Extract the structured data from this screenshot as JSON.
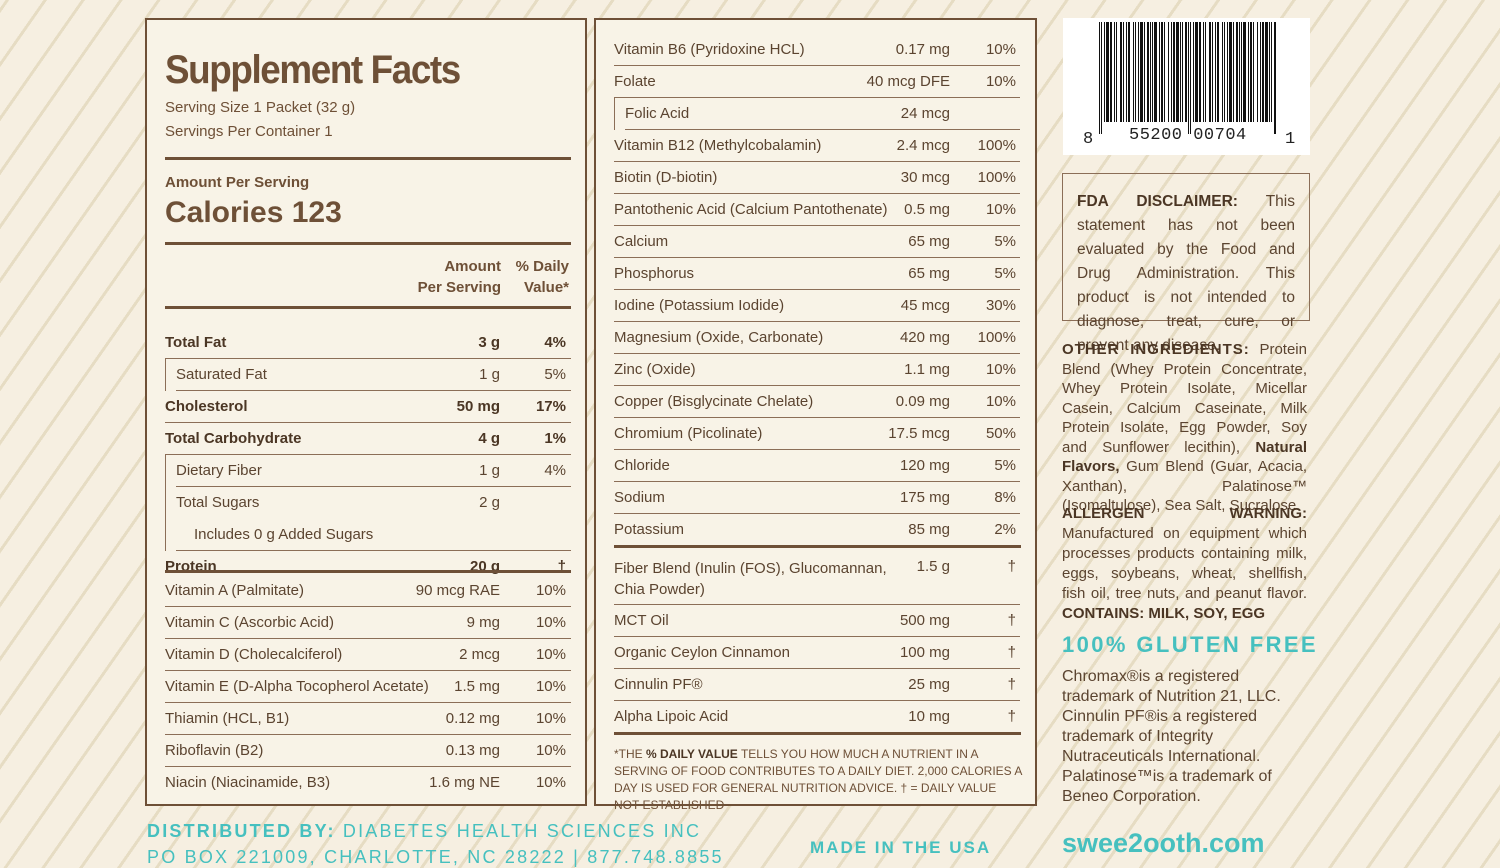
{
  "facts": {
    "title": "Supplement Facts",
    "serving_size": "Serving Size 1 Packet (32 g)",
    "servings_per_container": "Servings Per Container 1",
    "amount_per_serving": "Amount Per Serving",
    "calories": "Calories 123",
    "header_amount_1": "Amount",
    "header_amount_2": "Per Serving",
    "header_dv_1": "% Daily",
    "header_dv_2": "Value*",
    "macros": [
      {
        "name": "Total Fat",
        "amount": "3 g",
        "dv": "4%",
        "bold": true,
        "indent": 0
      },
      {
        "name": "Saturated Fat",
        "amount": "1 g",
        "dv": "5%",
        "bold": false,
        "indent": 1
      },
      {
        "name": "Cholesterol",
        "amount": "50 mg",
        "dv": "17%",
        "bold": true,
        "indent": 0
      },
      {
        "name": "Total Carbohydrate",
        "amount": "4 g",
        "dv": "1%",
        "bold": true,
        "indent": 0
      },
      {
        "name": "Dietary Fiber",
        "amount": "1 g",
        "dv": "4%",
        "bold": false,
        "indent": 1
      },
      {
        "name": "Total Sugars",
        "amount": "2 g",
        "dv": "",
        "bold": false,
        "indent": 1
      },
      {
        "name": "Includes 0 g Added Sugars",
        "amount": "",
        "dv": "",
        "bold": false,
        "indent": 2
      },
      {
        "name": "Protein",
        "amount": "20 g",
        "dv": "†",
        "bold": true,
        "indent": 0
      }
    ],
    "vitamins_left": [
      {
        "name": "Vitamin A (Palmitate)",
        "amount": "90 mcg RAE",
        "dv": "10%"
      },
      {
        "name": "Vitamin C (Ascorbic Acid)",
        "amount": "9 mg",
        "dv": "10%"
      },
      {
        "name": "Vitamin D (Cholecalciferol)",
        "amount": "2 mcg",
        "dv": "10%"
      },
      {
        "name": "Vitamin E (D-Alpha Tocopherol Acetate)",
        "amount": "1.5 mg",
        "dv": "10%"
      },
      {
        "name": "Thiamin (HCL, B1)",
        "amount": "0.12 mg",
        "dv": "10%"
      },
      {
        "name": "Riboflavin (B2)",
        "amount": "0.13 mg",
        "dv": "10%"
      },
      {
        "name": "Niacin (Niacinamide, B3)",
        "amount": "1.6 mg NE",
        "dv": "10%"
      }
    ],
    "vitamins_right": [
      {
        "name": "Vitamin B6 (Pyridoxine HCL)",
        "amount": "0.17 mg",
        "dv": "10%",
        "indent": 0
      },
      {
        "name": "Folate",
        "amount": "40 mcg DFE",
        "dv": "10%",
        "indent": 0
      },
      {
        "name": "Folic Acid",
        "amount": "24 mcg",
        "dv": "",
        "indent": 1
      },
      {
        "name": "Vitamin B12 (Methylcobalamin)",
        "amount": "2.4 mcg",
        "dv": "100%",
        "indent": 0
      },
      {
        "name": "Biotin (D-biotin)",
        "amount": "30 mcg",
        "dv": "100%",
        "indent": 0
      },
      {
        "name": "Pantothenic Acid (Calcium Pantothenate)",
        "amount": "0.5 mg",
        "dv": "10%",
        "indent": 0
      },
      {
        "name": "Calcium",
        "amount": "65 mg",
        "dv": "5%",
        "indent": 0
      },
      {
        "name": "Phosphorus",
        "amount": "65 mg",
        "dv": "5%",
        "indent": 0
      },
      {
        "name": "Iodine (Potassium Iodide)",
        "amount": "45 mcg",
        "dv": "30%",
        "indent": 0
      },
      {
        "name": "Magnesium (Oxide, Carbonate)",
        "amount": "420 mg",
        "dv": "100%",
        "indent": 0
      },
      {
        "name": "Zinc (Oxide)",
        "amount": "1.1 mg",
        "dv": "10%",
        "indent": 0
      },
      {
        "name": "Copper (Bisglycinate Chelate)",
        "amount": "0.09 mg",
        "dv": "10%",
        "indent": 0
      },
      {
        "name": "Chromium (Picolinate)",
        "amount": "17.5 mcg",
        "dv": "50%",
        "indent": 0
      },
      {
        "name": "Chloride",
        "amount": "120 mg",
        "dv": "5%",
        "indent": 0
      },
      {
        "name": "Sodium",
        "amount": "175 mg",
        "dv": "8%",
        "indent": 0
      },
      {
        "name": "Potassium",
        "amount": "85 mg",
        "dv": "2%",
        "indent": 0
      }
    ],
    "fiber_blend": {
      "name_1": "Fiber Blend (Inulin (FOS), Glucomannan,",
      "name_2": "Chia Powder)",
      "amount": "1.5 g",
      "dv": "†"
    },
    "others": [
      {
        "name": "MCT Oil",
        "amount": "500 mg",
        "dv": "†"
      },
      {
        "name": "Organic Ceylon Cinnamon",
        "amount": "100 mg",
        "dv": "†"
      },
      {
        "name": "Cinnulin PF®",
        "amount": "25 mg",
        "dv": "†"
      },
      {
        "name": "Alpha Lipoic Acid",
        "amount": "10 mg",
        "dv": "†"
      }
    ],
    "footnote_pre": "*THE ",
    "footnote_bold": "% DAILY VALUE",
    "footnote_post": " TELLS YOU HOW MUCH A NUTRIENT IN A SERVING OF FOOD CONTRIBUTES TO A DAILY DIET. 2,000 CALORIES A DAY IS USED FOR GENERAL NUTRITION ADVICE. † = DAILY VALUE NOT ESTABLISHED"
  },
  "barcode": {
    "digit_left": "8",
    "digits_mid": "55200 00704",
    "digit_right": "1"
  },
  "fda": {
    "label": "FDA DISCLAIMER:",
    "text": " This statement has not been evaluated by the Food and Drug Administration. This product is not intended to diagnose, treat, cure, or prevent any disease."
  },
  "ingredients": {
    "label": "OTHER INGREDIENTS:",
    "text_1": " Protein Blend (Whey Protein Concentrate, Whey Protein Isolate, Micellar Casein, Calcium Caseinate, Milk Protein Isolate, Egg Powder, Soy and Sunflower lecithin), ",
    "bold_2": "Natural Flavors,",
    "text_3": " Gum Blend (Guar, Acacia, Xanthan), Palatinose™ (Isomaltulose), Sea Salt, Sucralose."
  },
  "allergen": {
    "label": "ALLERGEN WARNING:",
    "text": " Manufactured on equipment which processes products containing milk, eggs, soybeans, wheat, shellfish, fish oil, tree nuts, and peanut flavor. ",
    "contains": "CONTAINS: MILK, SOY, EGG"
  },
  "gluten": "100% GLUTEN FREE",
  "trademarks": "Chromax®is a registered trademark of Nutrition 21, LLC. Cinnulin PF®is a registered trademark of Integrity Nutraceuticals International. Palatinose™is a trademark of Beneo Corporation.",
  "footer": {
    "distributed_label": "DISTRIBUTED BY:",
    "distributed_name": " DIABETES HEALTH SCIENCES INC",
    "address": "PO BOX 221009, CHARLOTTE, NC 28222 | 877.748.8855",
    "made_in": "MADE IN THE USA",
    "website": "swee2ooth.com"
  },
  "colors": {
    "brown": "#6e5037",
    "teal": "#46c0bf",
    "background": "#f6efe1"
  }
}
